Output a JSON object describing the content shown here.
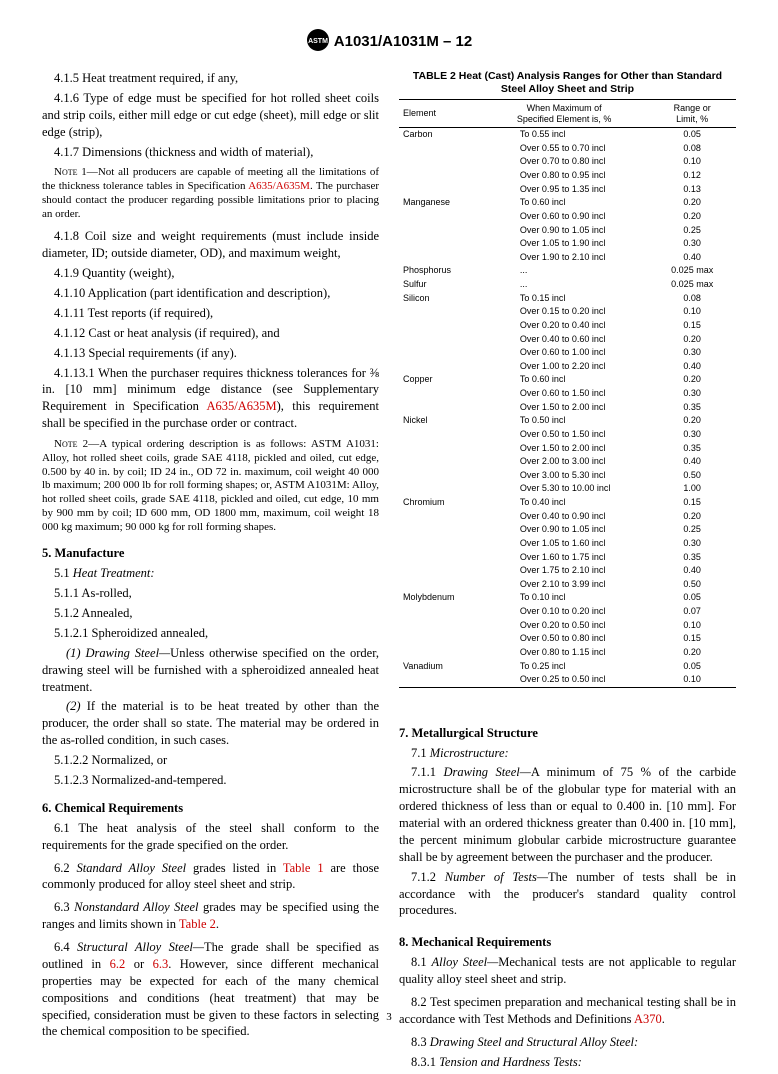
{
  "doc_id": "A1031/A1031M – 12",
  "page_number": "3",
  "left": {
    "p415": "4.1.5 Heat treatment required, if any,",
    "p416": "4.1.6 Type of edge must be specified for hot rolled sheet coils and strip coils, either mill edge or cut edge (sheet), mill edge or slit edge (strip),",
    "p417": "4.1.7 Dimensions (thickness and width of material),",
    "note1_lead": "Note 1—",
    "note1": "Not all producers are capable of meeting all the limitations of the thickness tolerance tables in Specification ",
    "note1_link": "A635/A635M",
    "note1_tail": ". The purchaser should contact the producer regarding possible limitations prior to placing an order.",
    "p418": "4.1.8 Coil size and weight requirements (must include inside diameter, ID; outside diameter, OD), and maximum weight,",
    "p419": "4.1.9 Quantity (weight),",
    "p4110": "4.1.10 Application (part identification and description),",
    "p4111": "4.1.11 Test reports (if required),",
    "p4112": "4.1.12 Cast or heat analysis (if required), and",
    "p4113": "4.1.13 Special requirements (if any).",
    "p41131_a": "4.1.13.1 When the purchaser requires thickness tolerances for ⅜ in. [10 mm] minimum edge distance (see Supplementary Requirement in Specification ",
    "p41131_link": "A635/A635M",
    "p41131_b": "), this requirement shall be specified in the purchase order or contract.",
    "note2_lead": "Note 2—",
    "note2": "A typical ordering description is as follows: ASTM A1031: Alloy, hot rolled sheet coils, grade SAE 4118, pickled and oiled, cut edge, 0.500 by 40 in. by coil; ID 24 in., OD 72 in. maximum, coil weight 40 000 lb maximum; 200 000 lb for roll forming shapes; or, ASTM A1031M: Alloy, hot rolled sheet coils, grade SAE 4118, pickled and oiled, cut edge, 10 mm by 900 mm by coil; ID 600 mm, OD 1800 mm, maximum, coil weight 18 000 kg maximum; 90 000 kg for roll forming shapes.",
    "s5": "5. Manufacture",
    "p51": "5.1 ",
    "p51_i": "Heat Treatment:",
    "p511": "5.1.1 As-rolled,",
    "p512": "5.1.2 Annealed,",
    "p5121": "5.1.2.1 Spheroidized annealed,",
    "p5121_1_i": "(1) Drawing Steel—",
    "p5121_1": "Unless otherwise specified on the order, drawing steel will be furnished with a spheroidized annealed heat treatment.",
    "p5121_2_i": "(2)",
    "p5121_2": " If the material is to be heat treated by other than the producer, the order shall so state. The material may be ordered in the as-rolled condition, in such cases.",
    "p5122": "5.1.2.2 Normalized, or",
    "p5123": "5.1.2.3 Normalized-and-tempered.",
    "s6": "6. Chemical Requirements",
    "p61": "6.1 The heat analysis of the steel shall conform to the requirements for the grade specified on the order.",
    "p62_a": "6.2 ",
    "p62_i": "Standard Alloy Steel",
    "p62_b": " grades listed in ",
    "p62_link": "Table 1",
    "p62_c": " are those commonly produced for alloy steel sheet and strip.",
    "p63_a": "6.3 ",
    "p63_i": "Nonstandard Alloy Steel",
    "p63_b": " grades may be specified using the ranges and limits shown in ",
    "p63_link": "Table 2",
    "p63_c": ".",
    "p64_a": "6.4 ",
    "p64_i": "Structural Alloy Steel—",
    "p64_b": "The grade shall be specified as outlined in ",
    "p64_link1": "6.2",
    "p64_or": " or ",
    "p64_link2": "6.3",
    "p64_c": ". However, since different mechanical properties may be expected for each of the many chemical compositions and conditions (heat treatment) that may be specified, consideration must be given to these factors in selecting the chemical composition to be specified."
  },
  "table": {
    "title": "TABLE 2 Heat (Cast) Analysis Ranges for Other than Standard Steel Alloy Sheet and Strip",
    "head_element": "Element",
    "head_spec": "When Maximum of\nSpecified Element is, %",
    "head_range": "Range or\nLimit, %",
    "rows": [
      [
        "Carbon",
        "To 0.55 incl",
        "0.05"
      ],
      [
        "",
        "Over 0.55 to 0.70 incl",
        "0.08"
      ],
      [
        "",
        "Over 0.70 to 0.80 incl",
        "0.10"
      ],
      [
        "",
        "Over 0.80 to 0.95 incl",
        "0.12"
      ],
      [
        "",
        "Over 0.95 to 1.35 incl",
        "0.13"
      ],
      [
        "Manganese",
        "To 0.60 incl",
        "0.20"
      ],
      [
        "",
        "Over 0.60 to 0.90 incl",
        "0.20"
      ],
      [
        "",
        "Over 0.90 to 1.05 incl",
        "0.25"
      ],
      [
        "",
        "Over 1.05 to 1.90 incl",
        "0.30"
      ],
      [
        "",
        "Over 1.90 to 2.10 incl",
        "0.40"
      ],
      [
        "Phosphorus",
        "...",
        "0.025 max"
      ],
      [
        "Sulfur",
        "...",
        "0.025 max"
      ],
      [
        "Silicon",
        "To 0.15 incl",
        "0.08"
      ],
      [
        "",
        "Over 0.15 to 0.20 incl",
        "0.10"
      ],
      [
        "",
        "Over 0.20 to 0.40 incl",
        "0.15"
      ],
      [
        "",
        "Over 0.40 to 0.60 incl",
        "0.20"
      ],
      [
        "",
        "Over 0.60 to 1.00 incl",
        "0.30"
      ],
      [
        "",
        "Over 1.00 to 2.20 incl",
        "0.40"
      ],
      [
        "Copper",
        "To 0.60 incl",
        "0.20"
      ],
      [
        "",
        "Over 0.60 to 1.50 incl",
        "0.30"
      ],
      [
        "",
        "Over 1.50 to 2.00 incl",
        "0.35"
      ],
      [
        "Nickel",
        "To 0.50 incl",
        "0.20"
      ],
      [
        "",
        "Over 0.50 to 1.50 incl",
        "0.30"
      ],
      [
        "",
        "Over 1.50 to 2.00 incl",
        "0.35"
      ],
      [
        "",
        "Over 2.00 to 3.00 incl",
        "0.40"
      ],
      [
        "",
        "Over 3.00 to 5.30 incl",
        "0.50"
      ],
      [
        "",
        "Over 5.30 to 10.00 incl",
        "1.00"
      ],
      [
        "Chromium",
        "To 0.40 incl",
        "0.15"
      ],
      [
        "",
        "Over 0.40 to 0.90 incl",
        "0.20"
      ],
      [
        "",
        "Over 0.90 to 1.05 incl",
        "0.25"
      ],
      [
        "",
        "Over 1.05 to 1.60 incl",
        "0.30"
      ],
      [
        "",
        "Over 1.60 to 1.75 incl",
        "0.35"
      ],
      [
        "",
        "Over 1.75 to 2.10 incl",
        "0.40"
      ],
      [
        "",
        "Over 2.10 to 3.99 incl",
        "0.50"
      ],
      [
        "Molybdenum",
        "To 0.10 incl",
        "0.05"
      ],
      [
        "",
        "Over 0.10 to 0.20 incl",
        "0.07"
      ],
      [
        "",
        "Over 0.20 to 0.50 incl",
        "0.10"
      ],
      [
        "",
        "Over 0.50 to 0.80 incl",
        "0.15"
      ],
      [
        "",
        "Over 0.80 to 1.15 incl",
        "0.20"
      ],
      [
        "Vanadium",
        "To 0.25 incl",
        "0.05"
      ],
      [
        "",
        "Over 0.25 to 0.50 incl",
        "0.10"
      ]
    ]
  },
  "right": {
    "s7": "7. Metallurgical Structure",
    "p71": "7.1 ",
    "p71_i": "Microstructure:",
    "p711_a": "7.1.1 ",
    "p711_i": "Drawing Steel—",
    "p711_b": "A minimum of 75 % of the carbide microstructure shall be of the globular type for material with an ordered thickness of less than or equal to 0.400 in. [10 mm]. For material with an ordered thickness greater than 0.400 in. [10 mm], the percent minimum globular carbide microstructure guarantee shall be by agreement between the purchaser and the producer.",
    "p712_a": "7.1.2 ",
    "p712_i": "Number of Tests—",
    "p712_b": "The number of tests shall be in accordance with the producer's standard quality control procedures.",
    "s8": "8. Mechanical Requirements",
    "p81_a": "8.1 ",
    "p81_i": "Alloy Steel—",
    "p81_b": "Mechanical tests are not applicable to regular quality alloy steel sheet and strip.",
    "p82_a": "8.2 Test specimen preparation and mechanical testing shall be in accordance with Test Methods and Definitions ",
    "p82_link": "A370",
    "p82_b": ".",
    "p83": "8.3 ",
    "p83_i": "Drawing Steel and Structural Alloy Steel:",
    "p831": "8.3.1 ",
    "p831_i": "Tension and Hardness Tests:"
  }
}
